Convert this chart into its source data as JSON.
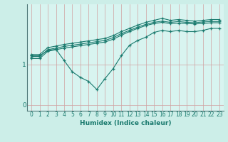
{
  "xlabel": "Humidex (Indice chaleur)",
  "bg_color": "#cceee8",
  "plot_bg_color": "#d8f4f0",
  "grid_color": "#d0a0a0",
  "line_color": "#1a7a6e",
  "spine_color": "#507878",
  "xlim": [
    -0.5,
    23.5
  ],
  "ylim": [
    -0.15,
    2.5
  ],
  "yticks": [
    0,
    1
  ],
  "xticks": [
    0,
    1,
    2,
    3,
    4,
    5,
    6,
    7,
    8,
    9,
    10,
    11,
    12,
    13,
    14,
    15,
    16,
    17,
    18,
    19,
    20,
    21,
    22,
    23
  ],
  "series": [
    {
      "x": [
        0,
        1,
        2,
        3,
        4,
        5,
        6,
        7,
        8,
        9,
        10,
        11,
        12,
        13,
        14,
        15,
        16,
        17,
        18,
        19,
        20,
        21,
        22,
        23
      ],
      "y": [
        1.25,
        1.25,
        1.42,
        1.46,
        1.5,
        1.53,
        1.56,
        1.59,
        1.62,
        1.65,
        1.72,
        1.82,
        1.9,
        1.98,
        2.05,
        2.1,
        2.15,
        2.1,
        2.12,
        2.1,
        2.08,
        2.1,
        2.12,
        2.12
      ]
    },
    {
      "x": [
        0,
        1,
        2,
        3,
        4,
        5,
        6,
        7,
        8,
        9,
        10,
        11,
        12,
        13,
        14,
        15,
        16,
        17,
        18,
        19,
        20,
        21,
        22,
        23
      ],
      "y": [
        1.2,
        1.2,
        1.37,
        1.41,
        1.45,
        1.48,
        1.51,
        1.54,
        1.57,
        1.6,
        1.67,
        1.77,
        1.85,
        1.93,
        2.0,
        2.05,
        2.08,
        2.05,
        2.07,
        2.05,
        2.04,
        2.06,
        2.07,
        2.07
      ]
    },
    {
      "x": [
        0,
        1,
        2,
        3,
        4,
        5,
        6,
        7,
        8,
        9,
        10,
        11,
        12,
        13,
        14,
        15,
        16,
        17,
        18,
        19,
        20,
        21,
        22,
        23
      ],
      "y": [
        1.15,
        1.15,
        1.33,
        1.37,
        1.41,
        1.44,
        1.47,
        1.5,
        1.53,
        1.56,
        1.63,
        1.73,
        1.82,
        1.9,
        1.97,
        2.02,
        2.05,
        2.02,
        2.03,
        2.02,
        2.01,
        2.02,
        2.04,
        2.04
      ]
    },
    {
      "x": [
        0,
        1,
        2,
        3,
        4,
        5,
        6,
        7,
        8,
        9,
        10,
        11,
        12,
        13,
        14,
        15,
        16,
        17,
        18,
        19,
        20,
        21,
        22,
        23
      ],
      "y": [
        1.22,
        1.22,
        1.35,
        1.38,
        1.1,
        0.82,
        0.68,
        0.58,
        0.38,
        0.65,
        0.9,
        1.22,
        1.48,
        1.6,
        1.68,
        1.8,
        1.85,
        1.82,
        1.85,
        1.82,
        1.82,
        1.85,
        1.9,
        1.9
      ]
    }
  ]
}
